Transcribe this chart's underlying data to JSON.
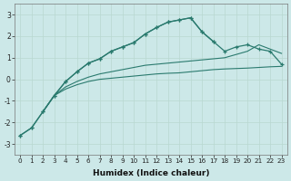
{
  "xlabel": "Humidex (Indice chaleur)",
  "x_full": [
    0,
    1,
    2,
    3,
    4,
    5,
    6,
    7,
    8,
    9,
    10,
    11,
    12,
    13,
    14,
    15,
    16,
    17,
    18,
    19,
    20,
    21,
    22,
    23
  ],
  "series_peak_full": [
    -2.6,
    -2.25,
    -1.5,
    -0.75,
    -0.1,
    0.35,
    0.75,
    0.95,
    1.3,
    1.5,
    1.7,
    2.1,
    2.4,
    2.65,
    2.75,
    2.85,
    2.2,
    1.75,
    1.3,
    1.5,
    1.6,
    1.4,
    1.3,
    0.7
  ],
  "series_peak_short_x": [
    0,
    1,
    2,
    3,
    4,
    5,
    6,
    7,
    8,
    9,
    10,
    11,
    12,
    13,
    14,
    15,
    16,
    17
  ],
  "series_peak_short": [
    -2.6,
    -2.25,
    -1.5,
    -0.75,
    -0.1,
    0.35,
    0.75,
    0.95,
    1.3,
    1.5,
    1.7,
    2.1,
    2.4,
    2.65,
    2.75,
    2.85,
    2.2,
    1.75
  ],
  "series_linear_high_x": [
    2,
    3,
    4,
    5,
    6,
    7,
    8,
    9,
    10,
    11,
    12,
    13,
    14,
    15,
    16,
    17,
    18,
    19,
    20,
    21,
    22,
    23
  ],
  "series_linear_high": [
    -1.5,
    -0.75,
    -0.35,
    -0.1,
    0.1,
    0.25,
    0.35,
    0.45,
    0.55,
    0.65,
    0.7,
    0.75,
    0.8,
    0.85,
    0.9,
    0.95,
    1.0,
    1.15,
    1.3,
    1.6,
    1.4,
    1.2
  ],
  "series_linear_low_x": [
    2,
    3,
    4,
    5,
    6,
    7,
    8,
    9,
    10,
    11,
    12,
    13,
    14,
    15,
    16,
    17,
    18,
    19,
    20,
    21,
    22,
    23
  ],
  "series_linear_low": [
    -1.5,
    -0.75,
    -0.45,
    -0.25,
    -0.1,
    0.0,
    0.05,
    0.1,
    0.15,
    0.2,
    0.25,
    0.28,
    0.3,
    0.35,
    0.4,
    0.45,
    0.48,
    0.5,
    0.52,
    0.55,
    0.58,
    0.6
  ],
  "ylim": [
    -3.5,
    3.5
  ],
  "xlim": [
    -0.5,
    23.5
  ],
  "line_color": "#2a7a6e",
  "bg_color": "#cce8e8",
  "grid_color": "#b8d8d0",
  "yticks": [
    -3,
    -2,
    -1,
    0,
    1,
    2,
    3
  ],
  "xticks": [
    0,
    1,
    2,
    3,
    4,
    5,
    6,
    7,
    8,
    9,
    10,
    11,
    12,
    13,
    14,
    15,
    16,
    17,
    18,
    19,
    20,
    21,
    22,
    23
  ]
}
